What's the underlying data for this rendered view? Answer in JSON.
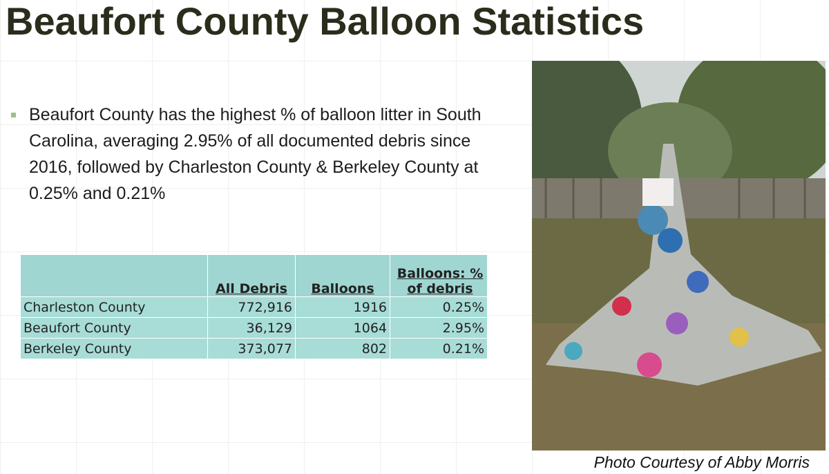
{
  "header": {
    "title": "Beaufort County Balloon Statistics"
  },
  "bullet": "Beaufort County has the highest % of balloon litter in South Carolina, averaging 2.95% of all documented debris since 2016, followed by Charleston County & Berkeley County at 0.25% and 0.21%",
  "table": {
    "columns": [
      "All Debris",
      "Balloons",
      "Balloons: % of debris"
    ],
    "rows": [
      [
        "Charleston County",
        "772,916",
        "1916",
        "0.25%"
      ],
      [
        "Beaufort County",
        "36,129",
        "1064",
        "2.95%"
      ],
      [
        "Berkeley County",
        "373,077",
        "802",
        "0.21%"
      ]
    ]
  },
  "photo": {
    "caption": "Photo Courtesy of Abby Morris"
  }
}
